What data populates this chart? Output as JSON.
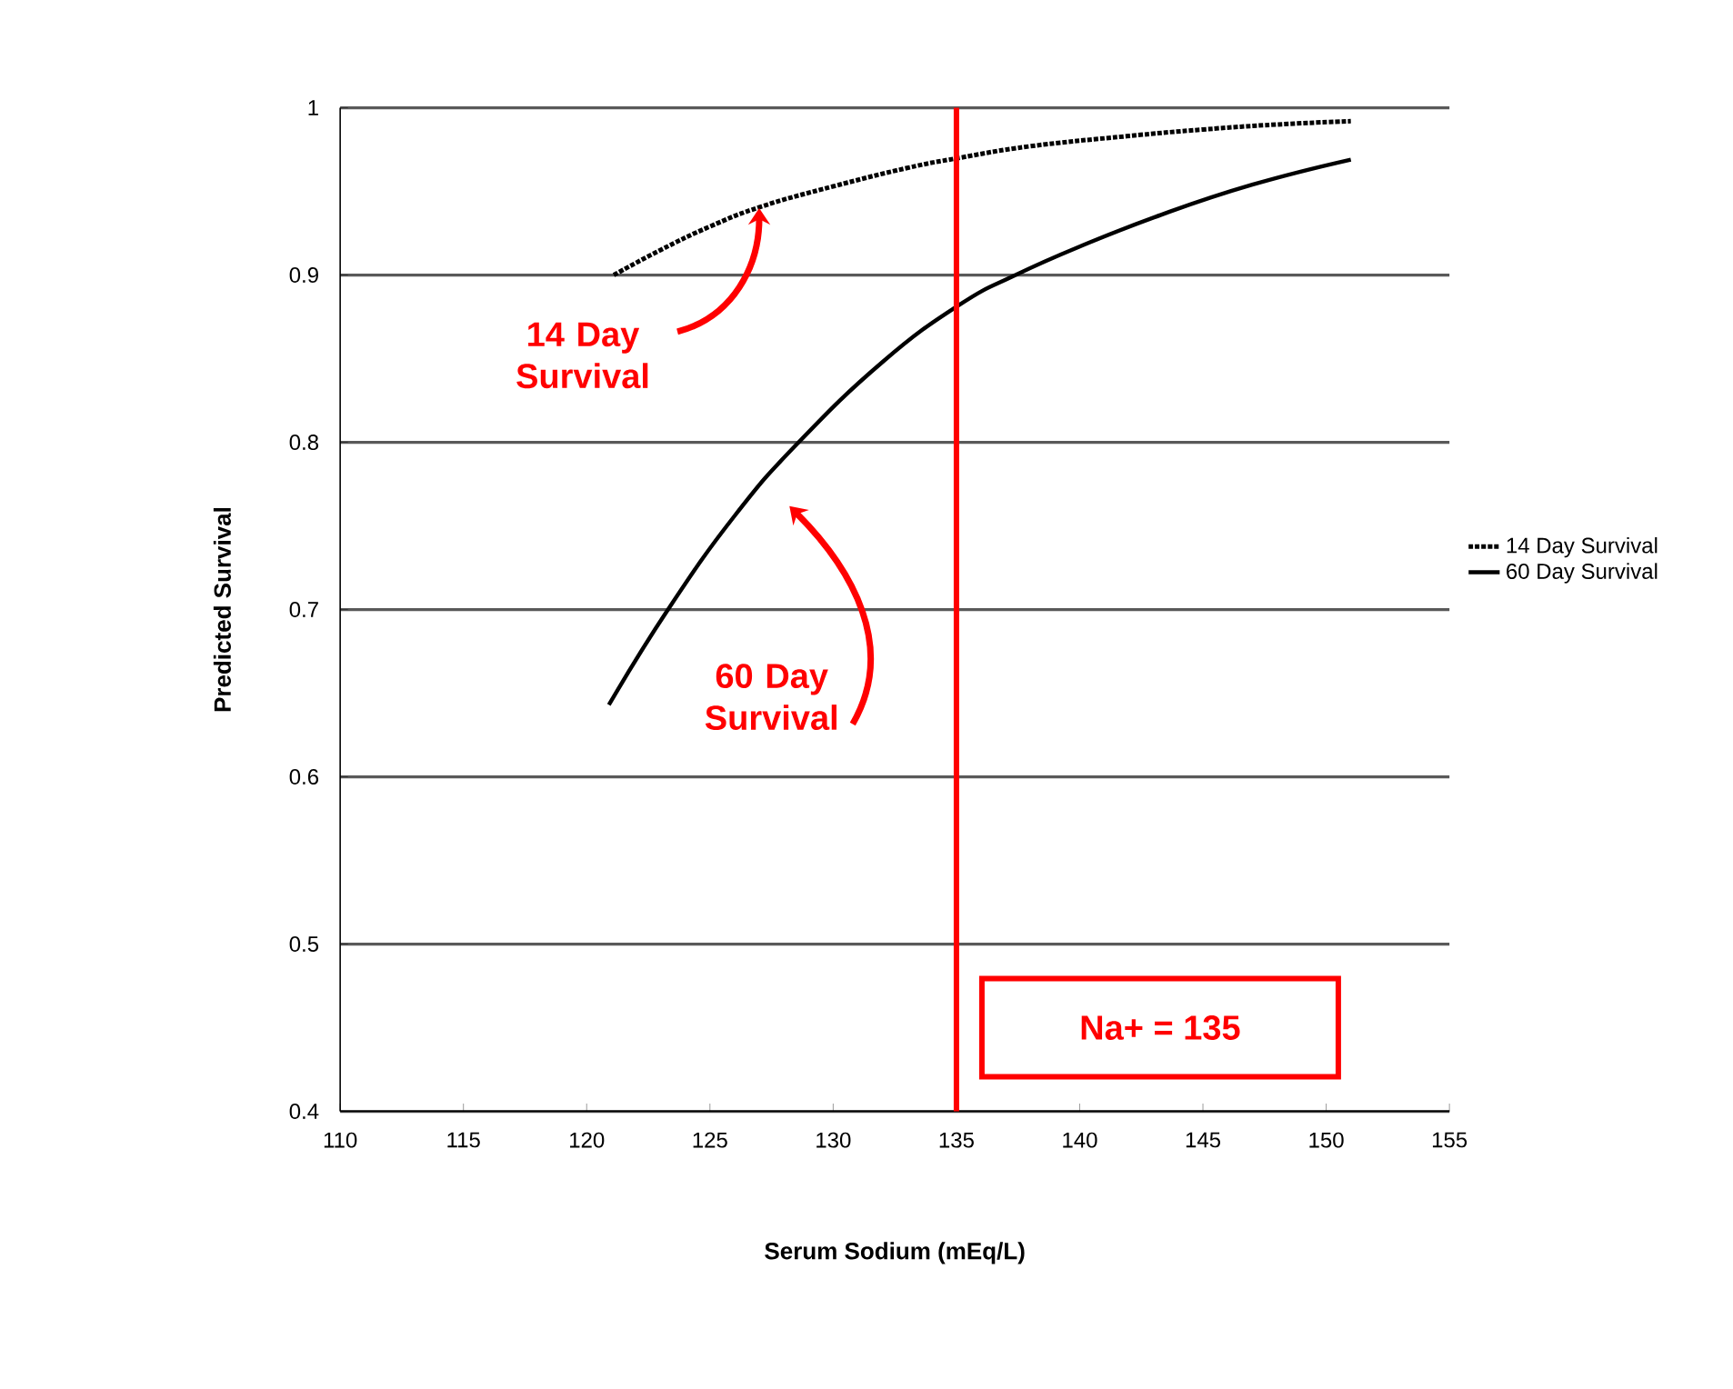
{
  "chart_data": {
    "type": "line",
    "xlabel": "Serum Sodium (mEq/L)",
    "ylabel": "Predicted Survival",
    "xlim": [
      110,
      155
    ],
    "xticks": [
      110,
      115,
      120,
      125,
      130,
      135,
      140,
      145,
      150,
      155
    ],
    "ylim": [
      0.4,
      1
    ],
    "yticks": [
      0.4,
      0.5,
      0.6,
      0.7,
      0.8,
      0.9,
      1
    ],
    "grid": "y",
    "legend": "right",
    "marker": "none",
    "series": [
      {
        "name": "14 Day Survival",
        "color": "#000000",
        "line_style": "dotted",
        "x": [
          121.1,
          123,
          125,
          127.1,
          130,
          133,
          135.1,
          138,
          141.9,
          145,
          148,
          151
        ],
        "values": [
          0.9,
          0.915,
          0.929,
          0.941,
          0.953,
          0.964,
          0.97,
          0.977,
          0.983,
          0.987,
          0.99,
          0.992
        ]
      },
      {
        "name": "60 Day Survival",
        "color": "#000000",
        "line_style": "solid",
        "x": [
          120.9,
          123.3,
          126,
          128.6,
          132,
          135.1,
          137.4,
          140,
          143.3,
          147,
          151
        ],
        "values": [
          0.643,
          0.7,
          0.756,
          0.8,
          0.848,
          0.882,
          0.9,
          0.917,
          0.936,
          0.954,
          0.969
        ]
      }
    ],
    "ref_lines": [
      {
        "axis": "x",
        "value": 135,
        "label": "Na+ = 135",
        "color": "#ff0000"
      }
    ],
    "annotations": [
      {
        "text": "14 Day Survival",
        "x": 127,
        "y": 0.94
      },
      "60 Day Survival"
    ]
  }
}
